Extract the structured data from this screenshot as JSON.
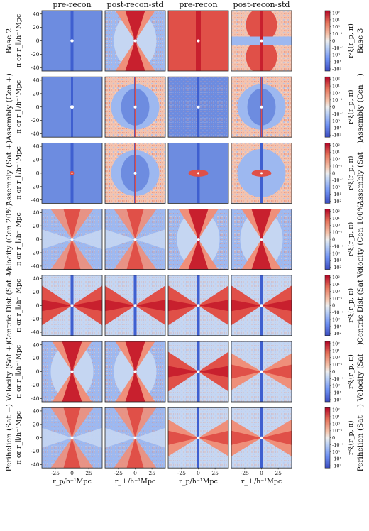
{
  "chart_data": {
    "type": "heatmap",
    "layout": "grid of 2D correlation-function heatmaps, 7 rows x 4 columns, shared colorbar per row",
    "column_titles": [
      "pre-recon",
      "post-recon-std",
      "pre-recon",
      "post-recon-std"
    ],
    "xlabels": [
      "r_p/h⁻¹Mpc",
      "r_⊥/h⁻¹Mpc",
      "r_p/h⁻¹Mpc",
      "r_⊥/h⁻¹Mpc"
    ],
    "ylabel": "π or r_∥/h⁻¹Mpc",
    "colorbar_label": "r²ξ(r_p, π)",
    "x_ticks": [
      -25,
      0,
      25
    ],
    "y_ticks": [
      40,
      20,
      0,
      -20,
      -40
    ],
    "xlim": [
      -45,
      45
    ],
    "ylim": [
      -45,
      45
    ],
    "colorbar_ticks": [
      "10²",
      "10¹",
      "10⁰",
      "10⁻¹",
      "0",
      "-10⁻¹",
      "10⁰",
      "-10¹",
      "-10²"
    ],
    "colormap": "coolwarm (symmetric log)",
    "grid": false,
    "rows": [
      {
        "left_label": "Base 2",
        "right_label": "Base 3",
        "panels": [
          "cross-flat",
          "hourglass-red",
          "saturated-red",
          "split-blobs-red"
        ]
      },
      {
        "left_label": "Assembly (Cen +)",
        "right_label": "Assembly (Cen −)",
        "panels": [
          "flat-blue",
          "lens-noise",
          "flat-blue-noise",
          "lens-noise"
        ]
      },
      {
        "left_label": "Assembly (Sat +)",
        "right_label": "Assembly (Sat −)",
        "panels": [
          "flat-blue-dot",
          "lens-noise",
          "central-ellipse",
          "central-ellipse-noise"
        ]
      },
      {
        "left_label": "Velocity (Cen 20%)",
        "right_label": "Velocity (Cen 100%)",
        "panels": [
          "hourglass-pale",
          "hourglass-pale",
          "hourglass-red",
          "hourglass-red"
        ]
      },
      {
        "left_label": "Centric Dist (Sat +)",
        "right_label": "Centric Dist (Sat −)",
        "panels": [
          "bowtie-red",
          "bowtie-red",
          "bowtie-red",
          "bowtie-red"
        ]
      },
      {
        "left_label": "Velocity (Sat +)",
        "right_label": "Velocity (Sat −)",
        "panels": [
          "hourglass-red",
          "hourglass-red",
          "bowtie-red",
          "bowtie-pale"
        ]
      },
      {
        "left_label": "Perihelion (Sat +)",
        "right_label": "Perihelion (Sat −)",
        "panels": [
          "hourglass-pale",
          "hourglass-pale",
          "bowtie-pale",
          "bowtie-pale"
        ]
      }
    ]
  }
}
